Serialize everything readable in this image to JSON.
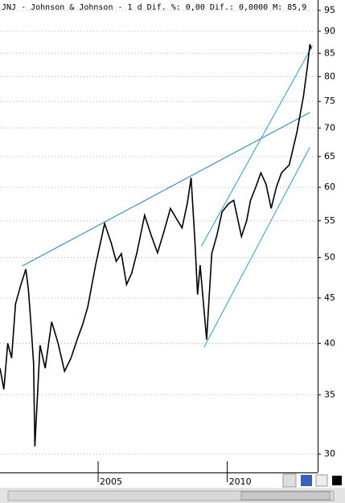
{
  "chart_data": {
    "type": "line",
    "title": "JNJ - Johnson & Johnson -  1 d Dif. %: 0,00 Dif.: 0,0000 M: 85,9",
    "log_scale": true,
    "grid": true,
    "color": "#000000",
    "x": [
      2001.2,
      2001.35,
      2001.5,
      2001.65,
      2001.8,
      2002.0,
      2002.2,
      2002.3,
      2002.4,
      2002.5,
      2002.55,
      2002.75,
      2002.95,
      2003.2,
      2003.45,
      2003.7,
      2003.95,
      2004.2,
      2004.4,
      2004.6,
      2004.9,
      2005.25,
      2005.5,
      2005.7,
      2005.9,
      2006.1,
      2006.3,
      2006.5,
      2006.8,
      2007.05,
      2007.3,
      2007.55,
      2007.8,
      2008.0,
      2008.25,
      2008.45,
      2008.6,
      2008.75,
      2008.85,
      2008.95,
      2009.2,
      2009.4,
      2009.6,
      2009.8,
      2010.05,
      2010.25,
      2010.55,
      2010.75,
      2010.9,
      2011.1,
      2011.3,
      2011.5,
      2011.7,
      2011.9,
      2012.1,
      2012.4,
      2012.7,
      2012.95,
      2013.1,
      2013.2,
      2013.25
    ],
    "values": [
      37.5,
      35.5,
      40.0,
      38.5,
      44.3,
      46.5,
      48.5,
      46.0,
      42.0,
      38.0,
      30.6,
      39.8,
      37.5,
      42.3,
      40.0,
      37.2,
      38.5,
      40.5,
      42.0,
      44.0,
      49.0,
      54.6,
      52.0,
      49.5,
      50.5,
      46.6,
      48.0,
      50.6,
      55.8,
      53.0,
      50.6,
      53.5,
      56.8,
      55.5,
      54.0,
      57.5,
      61.5,
      52.0,
      45.4,
      49.0,
      40.4,
      50.5,
      53.0,
      56.3,
      57.5,
      58.0,
      52.8,
      55.0,
      58.0,
      60.0,
      62.3,
      60.5,
      56.8,
      60.0,
      62.3,
      63.6,
      69.3,
      76.0,
      82.0,
      87.0,
      86.0
    ],
    "xlim": [
      2001.2,
      2013.5
    ],
    "xticks": [
      2005,
      2010
    ],
    "ylim": [
      28.6,
      96
    ],
    "yticks": [
      30,
      35,
      40,
      45,
      50,
      55,
      60,
      65,
      70,
      75,
      80,
      85,
      90,
      95
    ],
    "trendlines": [
      {
        "color": "#1a7fc4",
        "x": [
          2002.06,
          2013.2
        ],
        "values": [
          48.9,
          72.9
        ]
      },
      {
        "color": "#1fa0e0",
        "x": [
          2009.1,
          2013.2
        ],
        "values": [
          39.6,
          66.6
        ]
      },
      {
        "color": "#1fa0e0",
        "x": [
          2009.0,
          2013.3
        ],
        "values": [
          51.5,
          86.7
        ]
      }
    ]
  }
}
